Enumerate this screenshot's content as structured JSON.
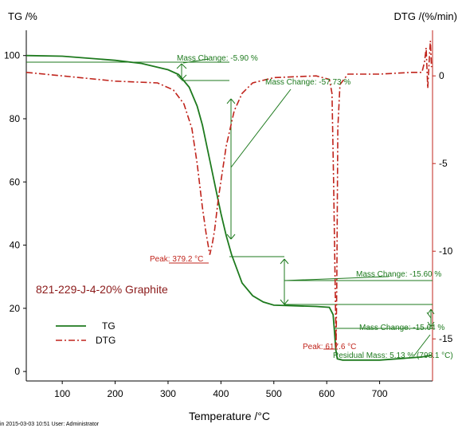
{
  "chart_data": {
    "type": "line",
    "left_axis": {
      "label": "TG /%",
      "ylim": [
        -3,
        108
      ],
      "ticks": [
        0,
        20,
        40,
        60,
        80,
        100
      ]
    },
    "right_axis": {
      "label": "DTG /(%/min)",
      "ylim": [
        -17.4,
        2.6
      ],
      "ticks": [
        0,
        -5,
        -10,
        -15
      ]
    },
    "x_axis": {
      "label": "Temperature /°C",
      "xlim": [
        32,
        800
      ],
      "ticks": [
        100,
        200,
        300,
        400,
        500,
        600,
        700
      ]
    },
    "sample_label": "821-229-J-4-20% Graphite",
    "legend": [
      {
        "name": "TG",
        "color": "#1e7a1e",
        "style": "solid"
      },
      {
        "name": "DTG",
        "color": "#c0241c",
        "style": "dash-dot"
      }
    ],
    "series": [
      {
        "name": "TG",
        "axis": "left",
        "color": "#1e7a1e",
        "x": [
          32,
          100,
          200,
          250,
          300,
          320,
          340,
          355,
          365,
          380,
          390,
          400,
          410,
          420,
          440,
          460,
          480,
          500,
          540,
          580,
          605,
          612,
          615,
          617,
          619,
          620,
          630,
          700,
          780,
          790,
          798
        ],
        "y": [
          100,
          99.8,
          98.5,
          97.5,
          95.5,
          94,
          90,
          84,
          78,
          66,
          58,
          50,
          43,
          37,
          28,
          24,
          22,
          21,
          20.8,
          20.6,
          20.3,
          18,
          12,
          7,
          5,
          4,
          3.6,
          3.6,
          4.6,
          4.9,
          5.13
        ]
      },
      {
        "name": "DTG",
        "axis": "right",
        "color": "#c0241c",
        "x": [
          32,
          100,
          200,
          280,
          310,
          330,
          345,
          355,
          365,
          372,
          379,
          384,
          388,
          395,
          410,
          425,
          440,
          460,
          500,
          580,
          605,
          610,
          613,
          616,
          617.6,
          619,
          621,
          625,
          640,
          700,
          760,
          780,
          785,
          788,
          791,
          794,
          796,
          798
        ],
        "y": [
          0.2,
          0,
          -0.3,
          -0.4,
          -0.8,
          -1.6,
          -3.0,
          -5.0,
          -7.5,
          -9.0,
          -10.2,
          -9.5,
          -8.8,
          -7.0,
          -4.0,
          -2.0,
          -1.0,
          -0.4,
          -0.1,
          0,
          -0.2,
          -1.0,
          -6.0,
          -12.0,
          -15.5,
          -12.0,
          -3.0,
          -0.5,
          0.1,
          0.1,
          0.2,
          0.2,
          0.8,
          1.6,
          -0.7,
          1.0,
          2.0,
          0.5
        ]
      }
    ],
    "annotations": [
      {
        "text": "Mass Change: -5.90 %",
        "color": "#1e7a1e"
      },
      {
        "text": "Mass Change: -57.73 %",
        "color": "#1e7a1e"
      },
      {
        "text": "Mass Change: -15.60 %",
        "color": "#1e7a1e"
      },
      {
        "text": "Mass Change: -15.64 %",
        "color": "#1e7a1e"
      },
      {
        "text": "Residual Mass: 5.13 % (798.1 °C)",
        "color": "#1e7a1e"
      },
      {
        "text": "Peak: 379.2 °C",
        "color": "#c0241c"
      },
      {
        "text": "Peak: 617.6 °C",
        "color": "#c0241c"
      }
    ],
    "footer": "in   2015-03-03 10:51   User: Administrator"
  }
}
